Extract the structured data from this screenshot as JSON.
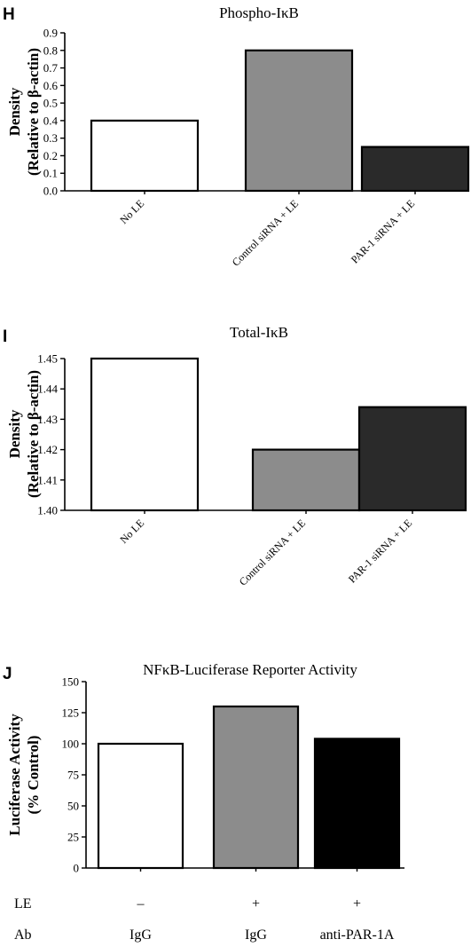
{
  "chart_data": [
    {
      "type": "bar",
      "panel_label": "H",
      "title": "Phospho-IκB",
      "ylabel_line1": "Density",
      "ylabel_line2": "(Relative  to  β-actin)",
      "categories": [
        "No LE",
        "Control siRNA + LE",
        "PAR-1 siRNA + LE"
      ],
      "values": [
        0.4,
        0.8,
        0.25
      ],
      "ylim": [
        0,
        0.9
      ],
      "yticks": [
        "0.0",
        "0.1",
        "0.2",
        "0.3",
        "0.4",
        "0.5",
        "0.6",
        "0.7",
        "0.8",
        "0.9"
      ],
      "colors": [
        "#ffffff",
        "#8c8c8c",
        "#2a2a2a"
      ],
      "grid": false
    },
    {
      "type": "bar",
      "panel_label": "I",
      "title": "Total-IκB",
      "ylabel_line1": "Density",
      "ylabel_line2": "(Relative  to  β-actin)",
      "categories": [
        "No LE",
        "Control siRNA + LE",
        "PAR-1 siRNA + LE"
      ],
      "values": [
        1.45,
        1.42,
        1.434
      ],
      "ylim": [
        1.4,
        1.45
      ],
      "yticks": [
        "1.40",
        "1.41",
        "1.42",
        "1.43",
        "1.44",
        "1.45"
      ],
      "colors": [
        "#ffffff",
        "#8c8c8c",
        "#2a2a2a"
      ],
      "grid": false
    },
    {
      "type": "bar",
      "panel_label": "J",
      "title": "NFκB-Luciferase  Reporter  Activity",
      "ylabel_line1": "Luciferase  Activity",
      "ylabel_line2": "(%  Control)",
      "categories": [
        "IgG",
        "IgG",
        "anti-PAR-1A"
      ],
      "values": [
        100,
        130,
        104
      ],
      "ylim": [
        0,
        150
      ],
      "yticks": [
        "0",
        "25",
        "50",
        "75",
        "100",
        "125",
        "150"
      ],
      "colors": [
        "#ffffff",
        "#8c8c8c",
        "#000000"
      ],
      "grid": false,
      "rows": [
        {
          "label": "LE",
          "values": [
            "–",
            "+",
            "+"
          ]
        },
        {
          "label": "Ab",
          "values": [
            "IgG",
            "IgG",
            "anti-PAR-1A"
          ]
        }
      ]
    }
  ]
}
